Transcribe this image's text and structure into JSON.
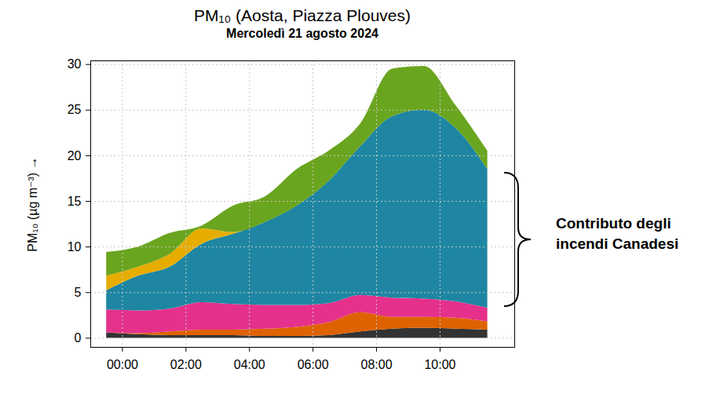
{
  "chart_data": {
    "type": "area",
    "title": "PM₁₀ (Aosta, Piazza Plouves)",
    "subtitle": "Mercoledì 21 agosto 2024",
    "y_label": "PM₁₀ (µg m⁻³)",
    "annotation": "Contributo degli incendi Canadesi",
    "stacked": true,
    "grid": true,
    "x": [
      -0.5,
      0.5,
      1.5,
      2.5,
      3.5,
      4.5,
      5.5,
      6.5,
      7.5,
      8.5,
      9.5,
      10.5,
      11.5
    ],
    "xlim": [
      -1,
      12.35
    ],
    "xticks": [
      {
        "value": 0,
        "label": "00:00"
      },
      {
        "value": 2,
        "label": "02:00"
      },
      {
        "value": 4,
        "label": "04:00"
      },
      {
        "value": 6,
        "label": "06:00"
      },
      {
        "value": 8,
        "label": "08:00"
      },
      {
        "value": 10,
        "label": "10:00"
      }
    ],
    "ylim": [
      -1,
      30.4
    ],
    "yticks": [
      0,
      5,
      10,
      15,
      20,
      25,
      30
    ],
    "series": [
      {
        "color": "#333333",
        "values": [
          0.6,
          0.4,
          0.3,
          0.3,
          0.3,
          0.2,
          0.2,
          0.3,
          0.7,
          1.0,
          1.1,
          1.0,
          0.9
        ]
      },
      {
        "color": "#df6200",
        "values": [
          0.0,
          0.1,
          0.4,
          0.6,
          0.6,
          0.8,
          1.0,
          1.4,
          2.1,
          1.3,
          1.2,
          1.2,
          0.9
        ]
      },
      {
        "color": "#e5318b",
        "values": [
          2.5,
          2.5,
          2.5,
          3.0,
          2.8,
          2.6,
          2.4,
          2.1,
          1.9,
          2.1,
          2.0,
          1.8,
          1.5
        ]
      },
      {
        "color": "#1e86a3",
        "values": [
          2.1,
          3.8,
          4.6,
          6.4,
          7.7,
          9.1,
          10.9,
          13.4,
          16.3,
          19.9,
          20.7,
          19.0,
          15.2
        ]
      },
      {
        "color": "#e6ad00",
        "values": [
          1.6,
          1.0,
          1.4,
          1.7,
          0.2,
          0.0,
          0.0,
          0.0,
          0.0,
          0.0,
          0.0,
          0.0,
          0.0
        ]
      },
      {
        "color": "#6aa51f",
        "values": [
          2.6,
          2.2,
          2.3,
          0.3,
          2.9,
          2.8,
          4.0,
          3.3,
          2.5,
          5.2,
          4.8,
          2.5,
          2.0
        ]
      }
    ]
  }
}
